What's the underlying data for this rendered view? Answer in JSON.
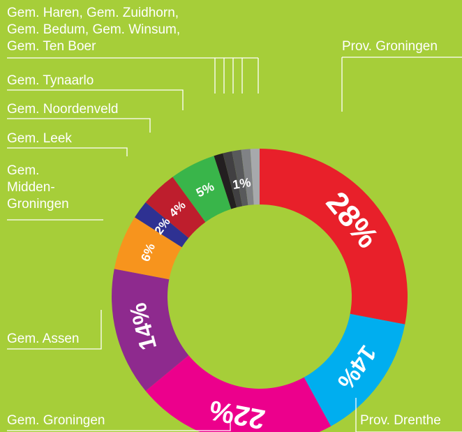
{
  "chart_data": {
    "type": "donut",
    "categories": [
      "Prov. Groningen",
      "Prov. Drenthe",
      "Gem. Groningen",
      "Gem. Assen",
      "Gem.\nMidden-\nGroningen",
      "Gem. Leek",
      "Gem. Noordenveld",
      "Gem. Tynaarlo",
      null,
      null,
      null,
      null,
      null
    ],
    "group_label": [
      "Gem. Haren, Gem. Zuidhorn,",
      "Gem. Bedum, Gem. Winsum,",
      "Gem. Ten Boer"
    ],
    "values": [
      28,
      14,
      22,
      14,
      6,
      2,
      4,
      5,
      1,
      1,
      1,
      1,
      1
    ],
    "value_labels": [
      "28%",
      "14%",
      "22%",
      "14%",
      "6%",
      "2%",
      "4%",
      "5%",
      null,
      null,
      "1%",
      null,
      null
    ],
    "colors": [
      "#e8202a",
      "#00aeef",
      "#ec008c",
      "#8e2a8e",
      "#f7941d",
      "#2e3192",
      "#be1e2d",
      "#39b54a",
      "#231f20",
      "#414042",
      "#58595b",
      "#808285",
      "#a7a9ac"
    ]
  }
}
